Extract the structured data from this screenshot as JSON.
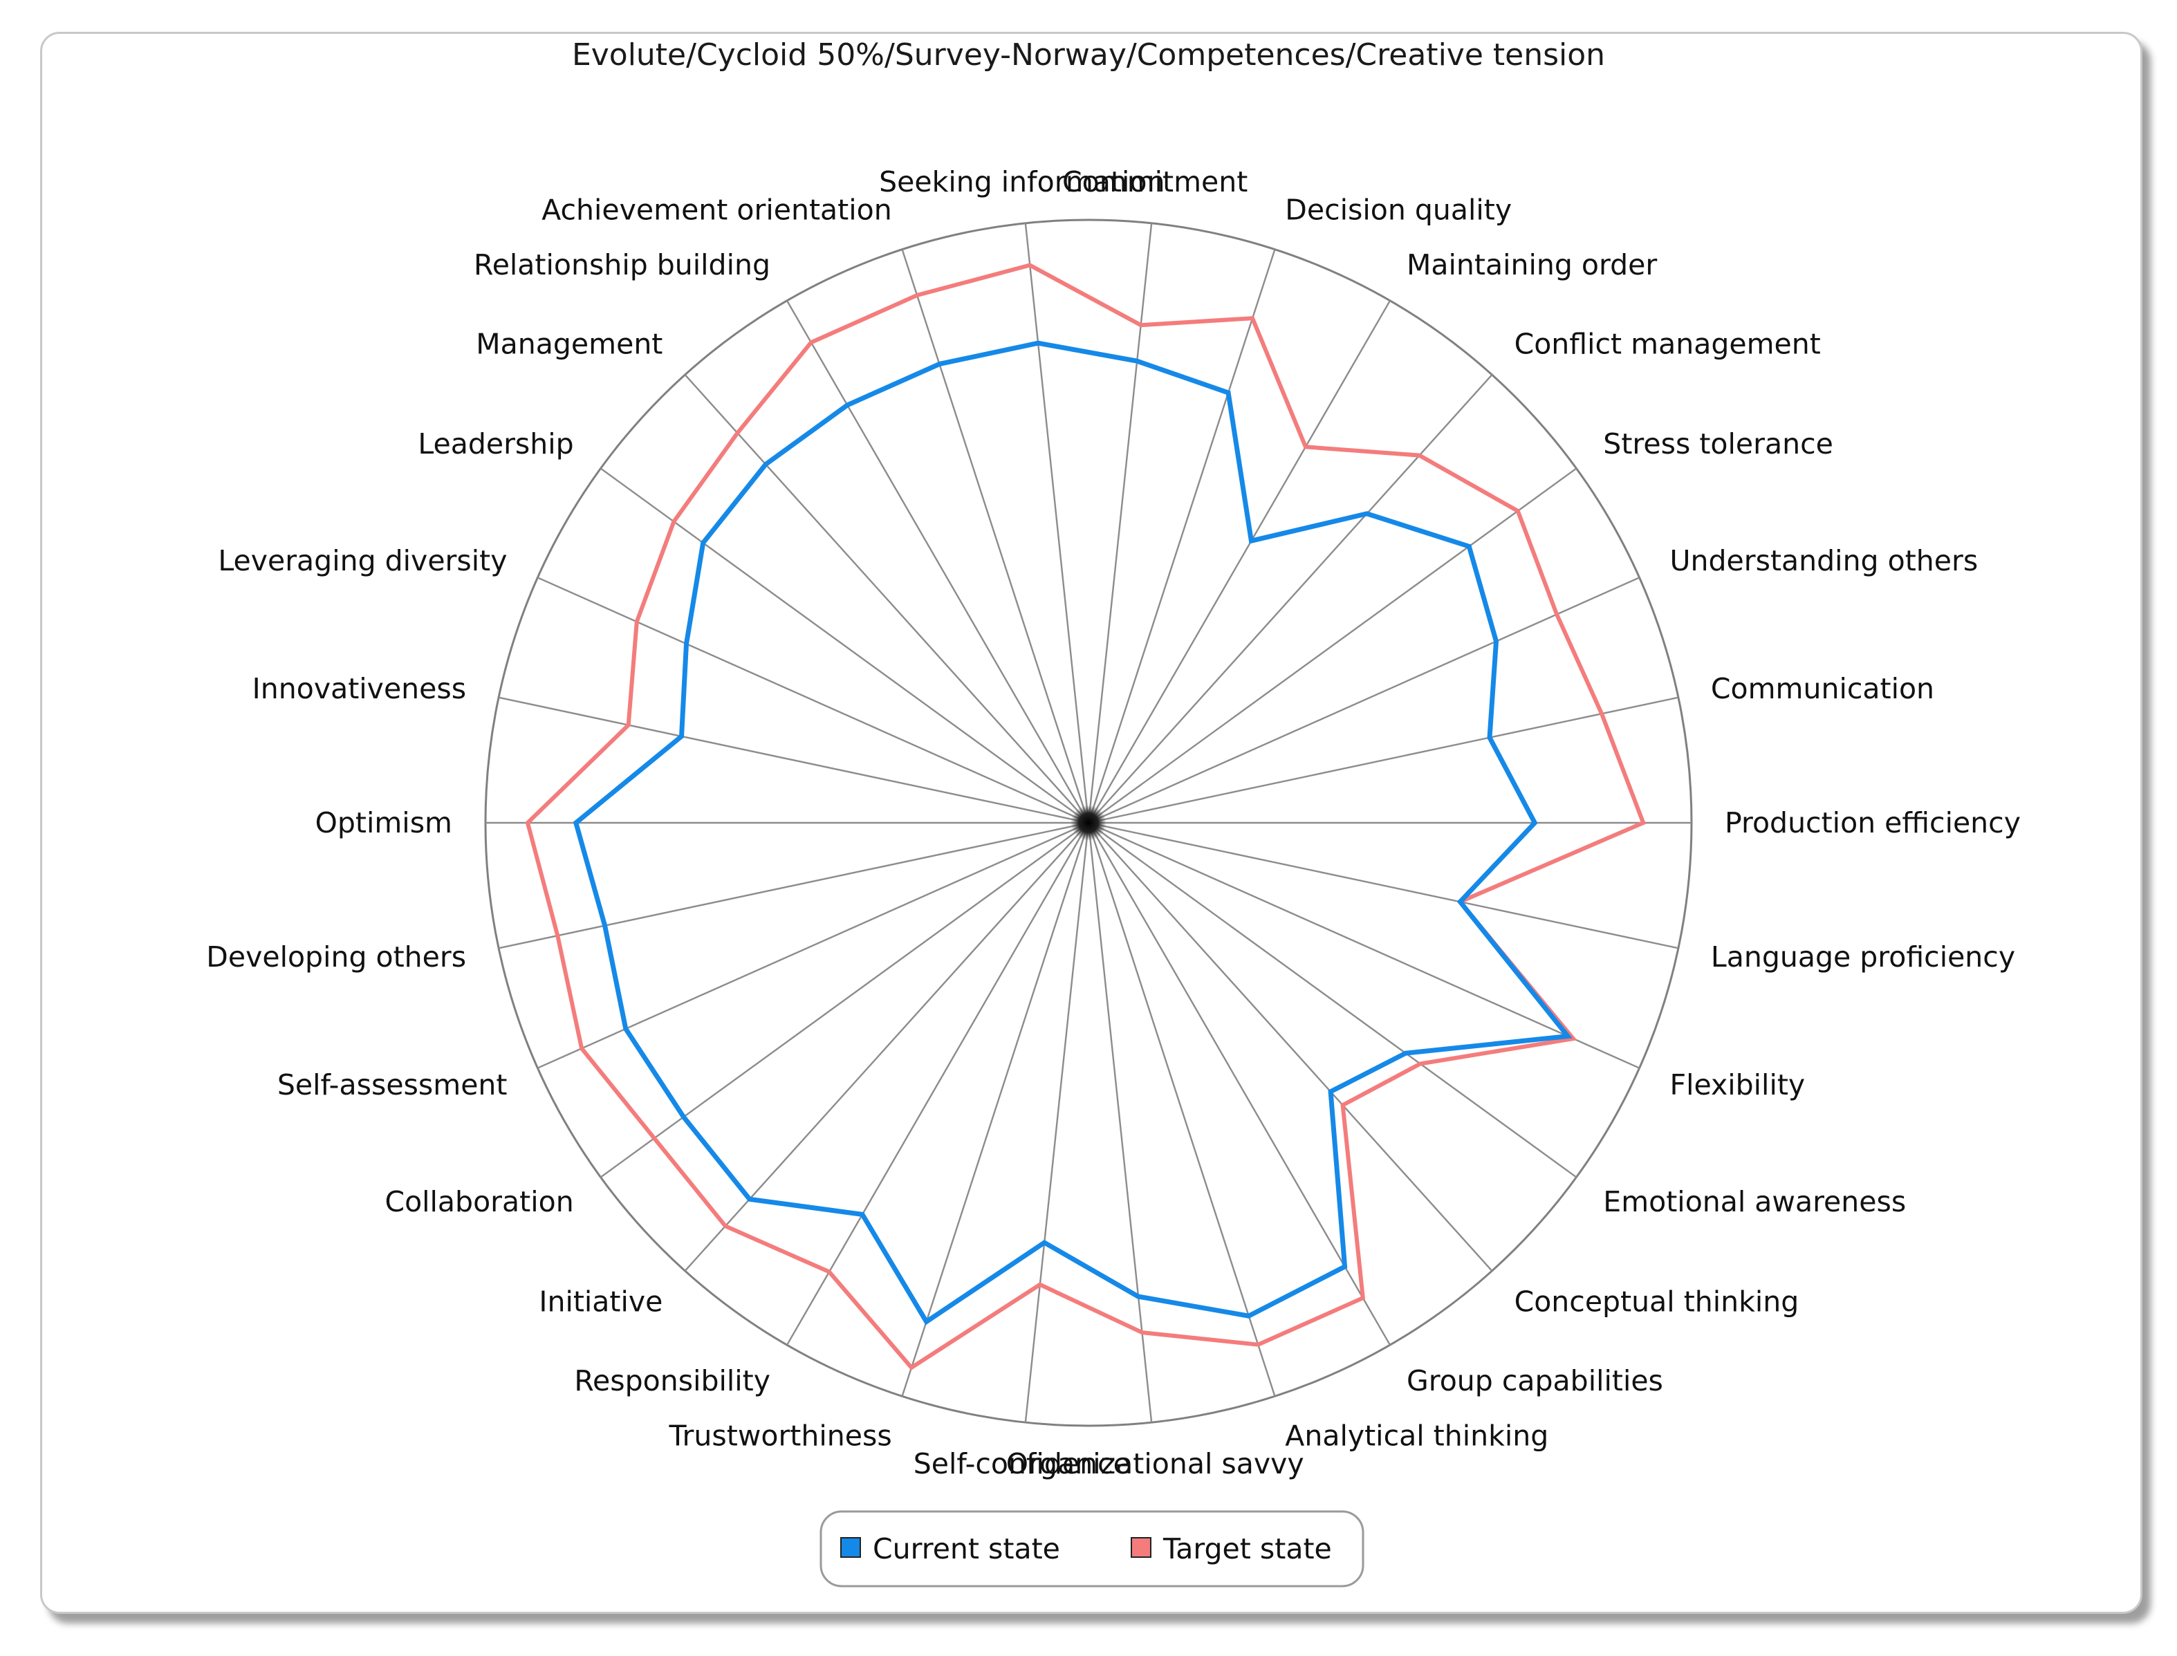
{
  "chart_data": {
    "type": "radar",
    "title": "Evolute/Cycloid 50%/Survey-Norway/Competences/Creative tension",
    "categories": [
      "Production efficiency",
      "Communication",
      "Understanding others",
      "Stress tolerance",
      "Conflict management",
      "Maintaining order",
      "Decision quality",
      "Commitment",
      "Seeking information",
      "Achievement orientation",
      "Relationship building",
      "Management",
      "Leadership",
      "Leveraging diversity",
      "Innovativeness",
      "Optimism",
      "Developing others",
      "Self-assessment",
      "Collaboration",
      "Initiative",
      "Responsibility",
      "Trustworthiness",
      "Self-confidence",
      "Organizational savvy",
      "Analytical thinking",
      "Group capabilities",
      "Conceptual thinking",
      "Emotional awareness",
      "Flexibility",
      "Language proficiency"
    ],
    "range": [
      0,
      100
    ],
    "series": [
      {
        "name": "Current state",
        "color": "#1589e8",
        "values": [
          74,
          68,
          74,
          78,
          69,
          54,
          75,
          77,
          80,
          80,
          80,
          80,
          79,
          73,
          69,
          85,
          82,
          84,
          83,
          84,
          75,
          87,
          70,
          79,
          86,
          85,
          60,
          65,
          87,
          63
        ]
      },
      {
        "name": "Target state",
        "color": "#f47c7c",
        "values": [
          92,
          87,
          85,
          88,
          82,
          72,
          88,
          83,
          93,
          92,
          92,
          87,
          85,
          82,
          78,
          93,
          90,
          92,
          89,
          90,
          86,
          95,
          77,
          85,
          91,
          91,
          63,
          68,
          88,
          63
        ]
      }
    ],
    "legend": "bottom-center"
  }
}
